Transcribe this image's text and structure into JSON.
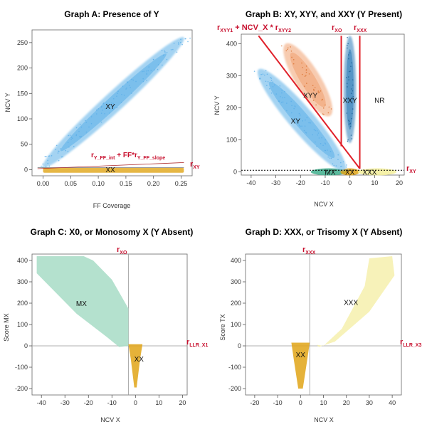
{
  "chart_data": [
    {
      "type": "scatter",
      "title": "Graph A: Presence of Y",
      "xlabel": "FF Coverage",
      "ylabel": "NCV Y",
      "xlim": [
        -0.02,
        0.27
      ],
      "ylim": [
        -12,
        275
      ],
      "xticks": [
        0.0,
        0.05,
        0.1,
        0.15,
        0.2,
        0.25
      ],
      "xtick_labels": [
        "0.00",
        "0.05",
        "0.10",
        "0.15",
        "0.20",
        "0.25"
      ],
      "yticks": [
        0,
        50,
        100,
        150,
        200,
        250
      ],
      "ytick_labels": [
        "0",
        "50",
        "100",
        "150",
        "200",
        "250"
      ],
      "clusters": [
        {
          "label": "XY",
          "color": "#5aaee8",
          "center": [
            0.13,
            135
          ],
          "axis_end_a": [
            0.0,
            5
          ],
          "axis_end_b": [
            0.255,
            260
          ],
          "width": 0.03
        },
        {
          "label": "XX",
          "color": "#e0a516",
          "center": [
            0.125,
            -1
          ],
          "axis_end_a": [
            0.0,
            -1
          ],
          "axis_end_b": [
            0.255,
            -1
          ],
          "width": 4
        }
      ],
      "lines": [
        {
          "name": "threshold",
          "x": [
            -0.01,
            0.255
          ],
          "y": [
            4,
            4
          ],
          "color": "#888888"
        },
        {
          "name": "slope",
          "x": [
            -0.01,
            0.255
          ],
          "y": [
            2,
            14
          ],
          "color": "#b03030"
        }
      ],
      "annotations": [
        {
          "text_main": "r",
          "text_sub": "Y_FF_int",
          "text_mid": " + FF*r",
          "text_sub2": "Y_FF_slope"
        },
        {
          "text_main": "r",
          "text_sub": "XY"
        }
      ]
    },
    {
      "type": "scatter",
      "title": "Graph B: XY, XYY, and XXY (Y Present)",
      "xlabel": "NCV X",
      "ylabel": "NCV Y",
      "xlim": [
        -44,
        22
      ],
      "ylim": [
        -10,
        430
      ],
      "xticks": [
        -40,
        -30,
        -20,
        -10,
        0,
        10,
        20
      ],
      "xtick_labels": [
        "-40",
        "-30",
        "-20",
        "-10",
        "0",
        "10",
        "20"
      ],
      "yticks": [
        0,
        100,
        200,
        300,
        400
      ],
      "ytick_labels": [
        "0",
        "100",
        "200",
        "300",
        "400"
      ],
      "clusters": [
        {
          "label": "XY",
          "color": "#5aaee8",
          "center": [
            -21,
            160
          ],
          "axis_end_a": [
            -37,
            320
          ],
          "axis_end_b": [
            -2,
            5
          ],
          "width": 5
        },
        {
          "label": "XYY",
          "color": "#f0a070",
          "center": [
            -17,
            290
          ],
          "axis_end_a": [
            -26,
            400
          ],
          "axis_end_b": [
            -8,
            175
          ],
          "width": 5
        },
        {
          "label": "XXY",
          "color": "#2a7ab8",
          "center": [
            0,
            255
          ],
          "axis_end_a": [
            0,
            425
          ],
          "axis_end_b": [
            0,
            90
          ],
          "width": 2.5
        },
        {
          "label": "MX",
          "color": "#3fae8c",
          "center": [
            -9,
            0
          ],
          "axis_end_a": [
            -15,
            0
          ],
          "axis_end_b": [
            -2,
            0
          ],
          "width": 4
        },
        {
          "label": "XX",
          "color": "#e0a516",
          "center": [
            0,
            0
          ],
          "axis_end_a": [
            -3,
            0
          ],
          "axis_end_b": [
            3,
            0
          ],
          "width": 4
        },
        {
          "label": "XXX",
          "color": "#f3ee9a",
          "center": [
            11,
            0
          ],
          "axis_end_a": [
            4,
            0
          ],
          "axis_end_b": [
            18,
            0
          ],
          "width": 4
        }
      ],
      "cluster_labels": [
        {
          "text": "XYY",
          "x": -16,
          "y": 240
        },
        {
          "text": "XXY",
          "x": 0,
          "y": 225
        },
        {
          "text": "XY",
          "x": -22,
          "y": 160
        },
        {
          "text": "NR",
          "x": 12,
          "y": 225
        },
        {
          "text": "MX",
          "x": -8,
          "y": 0
        },
        {
          "text": "XX",
          "x": 0,
          "y": 0
        },
        {
          "text": "XXX",
          "x": 8,
          "y": 0
        }
      ],
      "lines": [
        {
          "name": "diagonal",
          "x": [
            -37,
            4
          ],
          "y": [
            425,
            10
          ],
          "color": "#e0202a"
        },
        {
          "name": "rXO",
          "x": [
            -3.5,
            -3.5
          ],
          "y": [
            425,
            80
          ],
          "color": "#e0202a"
        },
        {
          "name": "rXXX",
          "x": [
            4,
            4
          ],
          "y": [
            425,
            10
          ],
          "color": "#e0202a"
        },
        {
          "name": "rXY",
          "x": [
            -44,
            22
          ],
          "y": [
            5,
            5
          ],
          "color": "#000000",
          "dash": true
        }
      ],
      "annotations": [
        {
          "text_main": "r",
          "text_sub": "XYY1",
          "text_mid": " + NCV_X * r",
          "text_sub2": "XYY2"
        },
        {
          "text_main": "r",
          "text_sub": "XO"
        },
        {
          "text_main": "r",
          "text_sub": "XXX"
        },
        {
          "text_main": "r",
          "text_sub": "XY"
        }
      ]
    },
    {
      "type": "scatter",
      "title": "Graph C: X0, or Monosomy X (Y Absent)",
      "xlabel": "NCV X",
      "ylabel": "Score MX",
      "xlim": [
        -44,
        22
      ],
      "ylim": [
        -230,
        430
      ],
      "xticks": [
        -40,
        -30,
        -20,
        -10,
        0,
        10,
        20
      ],
      "xtick_labels": [
        "-40",
        "-30",
        "-20",
        "-10",
        "0",
        "10",
        "20"
      ],
      "yticks": [
        -200,
        -100,
        0,
        100,
        200,
        300,
        400
      ],
      "ytick_labels": [
        "-200",
        "-100",
        "0",
        "100",
        "200",
        "300",
        "400"
      ],
      "clusters": [
        {
          "label": "MX",
          "color": "#a7dcc6"
        },
        {
          "label": "XX",
          "color": "#e0a516"
        }
      ],
      "cluster_labels": [
        {
          "text": "MX",
          "x": -23,
          "y": 200
        },
        {
          "text": "XX",
          "x": 1.5,
          "y": -60
        }
      ],
      "annotations": [
        {
          "text_main": "r",
          "text_sub": "XO"
        },
        {
          "text_main": "r",
          "text_sub": "LLR_X1"
        }
      ]
    },
    {
      "type": "scatter",
      "title": "Graph D: XXX, or Trisomy X (Y Absent)",
      "xlabel": "NCV X",
      "ylabel": "Score TX",
      "xlim": [
        -24,
        44
      ],
      "ylim": [
        -230,
        430
      ],
      "xticks": [
        -20,
        -10,
        0,
        10,
        20,
        30,
        40
      ],
      "xtick_labels": [
        "-20",
        "-10",
        "0",
        "10",
        "20",
        "30",
        "40"
      ],
      "yticks": [
        -200,
        -100,
        0,
        100,
        200,
        300,
        400
      ],
      "ytick_labels": [
        "-200",
        "-100",
        "0",
        "100",
        "200",
        "300",
        "400"
      ],
      "clusters": [
        {
          "label": "XXX",
          "color": "#f6f0ad"
        },
        {
          "label": "XX",
          "color": "#e0a516"
        }
      ],
      "cluster_labels": [
        {
          "text": "XXX",
          "x": 22,
          "y": 205
        },
        {
          "text": "XX",
          "x": 0,
          "y": -40
        }
      ],
      "annotations": [
        {
          "text_main": "r",
          "text_sub": "XXX"
        },
        {
          "text_main": "r",
          "text_sub": "LLR_X3"
        }
      ]
    }
  ]
}
